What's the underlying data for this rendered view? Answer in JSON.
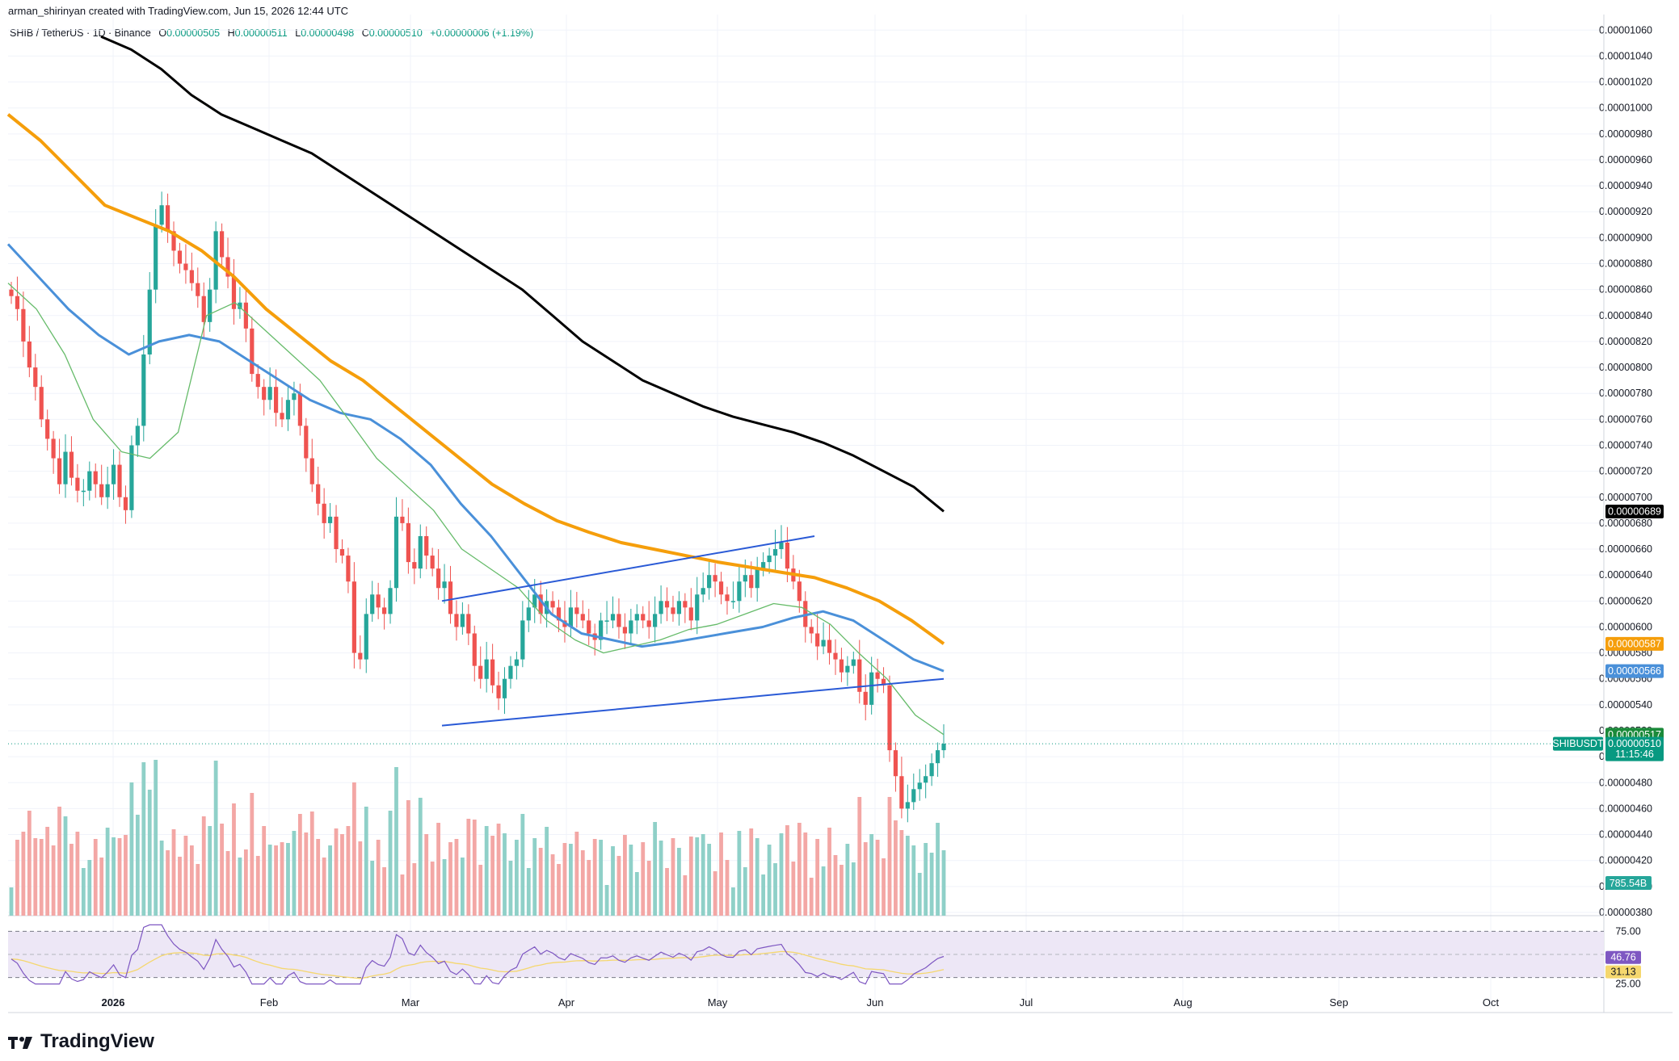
{
  "header": {
    "credit": "arman_shirinyan created with TradingView.com, Jun 15, 2026 12:44 UTC",
    "symbol": "SHIB / TetherUS · 1D · Binance",
    "o_label": "O",
    "o_value": "0.00000505",
    "h_label": "H",
    "h_value": "0.00000511",
    "l_label": "L",
    "l_value": "0.00000498",
    "c_label": "C",
    "c_value": "0.00000510",
    "change": "+0.00000006 (+1.19%)"
  },
  "brand": {
    "name": "TradingView"
  },
  "colors": {
    "up": "#26a69a",
    "down": "#ef5350",
    "ma200": "#000000",
    "ma100": "#f59e0b",
    "ma50": "#4a90d9",
    "ma20": "#66bb6a",
    "trendline": "#2a5ad6",
    "rsi": "#7e57c2",
    "rsi_ma": "#f5d76e",
    "rsi_band": "#ede7f6",
    "vol_up": "#8fd0c8",
    "vol_down": "#f3a7a5"
  },
  "chart_data": {
    "type": "candlestick",
    "price_axis": {
      "ticks": [
        "0.00001060",
        "0.00001040",
        "0.00001020",
        "0.00001000",
        "0.00000980",
        "0.00000960",
        "0.00000940",
        "0.00000920",
        "0.00000900",
        "0.00000880",
        "0.00000860",
        "0.00000840",
        "0.00000820",
        "0.00000800",
        "0.00000780",
        "0.00000760",
        "0.00000740",
        "0.00000720",
        "0.00000700",
        "0.00000680",
        "0.00000660",
        "0.00000640",
        "0.00000620",
        "0.00000600",
        "0.00000580",
        "0.00000560",
        "0.00000540",
        "0.00000520",
        "0.00000500",
        "0.00000480",
        "0.00000460",
        "0.00000440",
        "0.00000420",
        "0.00000400",
        "0.00000380"
      ],
      "ylim": [
        3.75,
        10.72
      ]
    },
    "date_axis": {
      "labels": [
        "2026",
        "Feb",
        "Mar",
        "Apr",
        "May",
        "Jun",
        "Jul",
        "Aug",
        "Sep",
        "Oct"
      ]
    },
    "close_series": [
      8.55,
      8.45,
      8.2,
      8.0,
      7.85,
      7.6,
      7.45,
      7.3,
      7.1,
      7.35,
      7.15,
      7.05,
      7.05,
      7.2,
      7.1,
      7.0,
      7.1,
      7.25,
      7.0,
      6.9,
      7.4,
      7.55,
      8.1,
      8.6,
      9.1,
      9.25,
      9.05,
      8.9,
      8.8,
      8.75,
      8.65,
      8.55,
      8.35,
      8.6,
      9.05,
      8.85,
      8.7,
      8.45,
      8.5,
      8.3,
      7.95,
      7.85,
      7.75,
      7.85,
      7.65,
      7.6,
      7.75,
      7.8,
      7.55,
      7.3,
      7.1,
      6.95,
      6.8,
      6.85,
      6.6,
      6.55,
      6.35,
      5.8,
      5.75,
      6.1,
      6.25,
      6.15,
      6.1,
      6.3,
      6.85,
      6.8,
      6.5,
      6.45,
      6.7,
      6.55,
      6.45,
      6.3,
      6.35,
      6.1,
      6.0,
      6.1,
      5.95,
      5.7,
      5.6,
      5.75,
      5.55,
      5.45,
      5.6,
      5.7,
      5.75,
      6.05,
      6.15,
      6.25,
      6.1,
      6.2,
      6.15,
      6.05,
      6.0,
      6.15,
      6.1,
      6.05,
      5.95,
      5.9,
      6.05,
      6.05,
      6.1,
      6.0,
      5.95,
      6.05,
      6.1,
      6.05,
      6.0,
      6.1,
      6.2,
      6.15,
      6.1,
      6.2,
      6.15,
      6.05,
      6.25,
      6.3,
      6.4,
      6.35,
      6.25,
      6.2,
      6.2,
      6.35,
      6.4,
      6.3,
      6.45,
      6.5,
      6.55,
      6.6,
      6.65,
      6.45,
      6.35,
      6.2,
      6.0,
      5.95,
      5.85,
      5.9,
      5.8,
      5.75,
      5.65,
      5.7,
      5.75,
      5.5,
      5.4,
      5.65,
      5.6,
      5.55,
      5.05,
      4.85,
      4.6,
      4.65,
      4.75,
      4.8,
      4.85,
      4.95,
      5.05,
      5.1
    ],
    "ma200": [
      10.55,
      10.45,
      10.3,
      10.1,
      9.95,
      9.85,
      9.75,
      9.65,
      9.5,
      9.35,
      9.2,
      9.05,
      8.9,
      8.75,
      8.6,
      8.4,
      8.2,
      8.05,
      7.9,
      7.8,
      7.7,
      7.62,
      7.56,
      7.5,
      7.42,
      7.32,
      7.2,
      7.08,
      6.89
    ],
    "ma100": [
      9.95,
      9.75,
      9.5,
      9.25,
      9.15,
      9.05,
      8.9,
      8.7,
      8.45,
      8.25,
      8.05,
      7.9,
      7.7,
      7.5,
      7.3,
      7.1,
      6.95,
      6.82,
      6.73,
      6.65,
      6.6,
      6.55,
      6.5,
      6.46,
      6.42,
      6.38,
      6.3,
      6.2,
      6.05,
      5.87
    ],
    "ma50": [
      8.95,
      8.7,
      8.45,
      8.25,
      8.1,
      8.2,
      8.25,
      8.2,
      8.05,
      7.9,
      7.75,
      7.65,
      7.6,
      7.45,
      7.25,
      6.95,
      6.7,
      6.4,
      6.1,
      5.95,
      5.9,
      5.85,
      5.88,
      5.92,
      5.96,
      6.0,
      6.07,
      6.12,
      6.05,
      5.9,
      5.75,
      5.66
    ],
    "ma20": [
      8.65,
      8.45,
      8.1,
      7.6,
      7.35,
      7.3,
      7.5,
      8.4,
      8.5,
      8.3,
      8.1,
      7.9,
      7.6,
      7.3,
      7.1,
      6.9,
      6.6,
      6.45,
      6.3,
      6.05,
      5.9,
      5.8,
      5.85,
      5.9,
      5.98,
      6.02,
      6.1,
      6.18,
      6.15,
      6.02,
      5.8,
      5.6,
      5.32,
      5.17
    ],
    "trendlines": [
      {
        "from": [
          "Mar 10",
          6.2
        ],
        "to": [
          "May 20",
          6.7
        ]
      },
      {
        "from": [
          "Mar 10",
          5.24
        ],
        "to": [
          "Jun 16",
          5.6
        ]
      }
    ],
    "price_tags": [
      {
        "label": "0.00000689",
        "value": 6.89,
        "color": "#000000"
      },
      {
        "label": "0.00000587",
        "value": 5.87,
        "color": "#f59e0b"
      },
      {
        "label": "0.00000566",
        "value": 5.66,
        "color": "#4a90d9"
      },
      {
        "label": "0.00000517",
        "value": 5.17,
        "color": "#1b8a3a"
      },
      {
        "label": "0.00000510",
        "value": 5.1,
        "color": "#089981",
        "timer": "11:15:46",
        "symbol": "SHIBUSDT"
      }
    ],
    "volume": {
      "last_label": "785.54B"
    },
    "rsi": {
      "levels": [
        "75.00",
        "25.00"
      ],
      "value_label": "46.76",
      "ma_label": "31.13",
      "value": 46.76,
      "ma_value": 31.13
    }
  }
}
